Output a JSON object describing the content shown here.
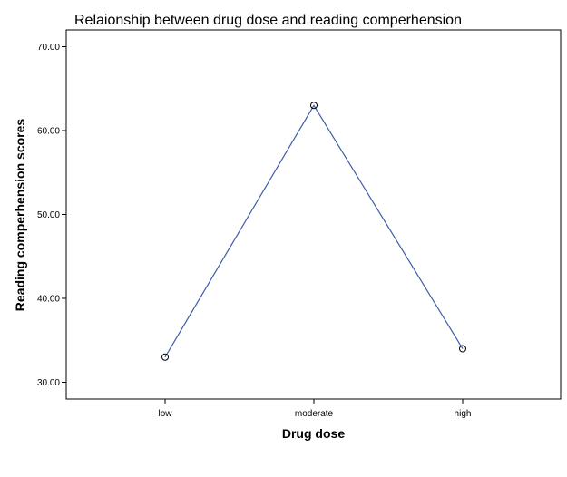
{
  "chart_data": {
    "type": "line",
    "title": "Relaionship between drug dose and reading comperhension",
    "xlabel": "Drug dose",
    "ylabel": "Reading comperhension scores",
    "categories": [
      "low",
      "moderate",
      "high"
    ],
    "values": [
      33,
      63,
      34
    ],
    "ylim": [
      28,
      72
    ],
    "yticks": [
      30,
      40,
      50,
      60,
      70
    ],
    "ytick_labels": [
      "30.00",
      "40.00",
      "50.00",
      "60.00",
      "70.00"
    ],
    "markers": "open-circle",
    "line_color": "#3f5ca8",
    "marker_color": "#000000",
    "grid": false,
    "legend": "none"
  }
}
